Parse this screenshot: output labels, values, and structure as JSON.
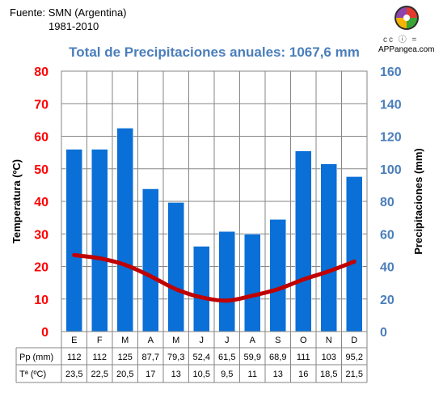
{
  "header": {
    "source": "Fuente: SMN (Argentina)",
    "period": "1981-2010",
    "license_icons": "cc ⓘ =",
    "brand": "APPangea.com"
  },
  "colors": {
    "bars": "#0a6fd6",
    "line": "#c00000",
    "left_axis": "#ff0000",
    "right_axis": "#4a7ebb"
  },
  "chart_data": {
    "type": "bar",
    "title": "Total de Precipitaciones anuales: 1067,6 mm",
    "categories": [
      "E",
      "F",
      "M",
      "A",
      "M",
      "J",
      "J",
      "A",
      "S",
      "O",
      "N",
      "D"
    ],
    "series": [
      {
        "name": "Pp (mm)",
        "type": "bar",
        "axis": "right",
        "values": [
          112,
          112,
          125,
          87.7,
          79.3,
          52.4,
          61.5,
          59.9,
          68.9,
          111,
          103,
          95.2
        ],
        "labels": [
          "112",
          "112",
          "125",
          "87,7",
          "79,3",
          "52,4",
          "61,5",
          "59,9",
          "68,9",
          "111",
          "103",
          "95,2"
        ]
      },
      {
        "name": "Tª (ºC)",
        "type": "line",
        "axis": "left",
        "values": [
          23.5,
          22.5,
          20.5,
          17,
          13,
          10.5,
          9.5,
          11,
          13,
          16,
          18.5,
          21.5
        ],
        "labels": [
          "23,5",
          "22,5",
          "20,5",
          "17",
          "13",
          "10,5",
          "9,5",
          "11",
          "13",
          "16",
          "18,5",
          "21,5"
        ]
      }
    ],
    "ylabel_left": "Temperatura (ºC)",
    "ylabel_right": "Precipitaciones (mm)",
    "ylim_left": [
      0,
      80
    ],
    "ylim_right": [
      0,
      160
    ],
    "yticks_left": [
      "0",
      "10",
      "20",
      "30",
      "40",
      "50",
      "60",
      "70",
      "80"
    ],
    "yticks_right": [
      "0",
      "20",
      "40",
      "60",
      "80",
      "100",
      "120",
      "140",
      "160"
    ],
    "grid": true
  }
}
